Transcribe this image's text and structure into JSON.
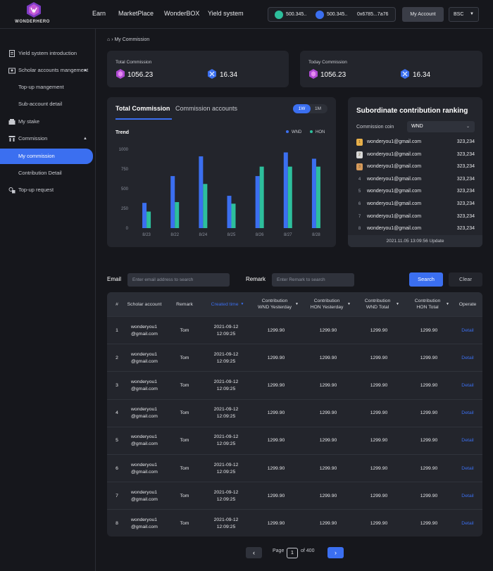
{
  "header": {
    "logo_text": "WONDERHERO",
    "nav": [
      "Earn",
      "MarketPlace",
      "WonderBOX",
      "Yield system"
    ],
    "wallet": {
      "wnd_balance": "500.345..",
      "hon_balance": "500.345..",
      "address": "0x6785...7a76"
    },
    "account_label": "My Account",
    "chain_label": "BSC"
  },
  "sidebar": {
    "items": [
      {
        "label": "Yield system introduction"
      },
      {
        "label": "Scholar accounts mangement"
      },
      {
        "label": "Top-up mangement"
      },
      {
        "label": "Sub-account detail"
      },
      {
        "label": "My stake"
      },
      {
        "label": "Commission"
      },
      {
        "label": "My commission"
      },
      {
        "label": "Contribution Detail"
      },
      {
        "label": "Top-up request"
      }
    ]
  },
  "breadcrumb": {
    "current": "My Commission"
  },
  "summary": {
    "total": {
      "label": "Total Commission",
      "wnd": "1056.23",
      "hon": "16.34"
    },
    "today": {
      "label": "Today Commission",
      "wnd": "1056.23",
      "hon": "16.34"
    }
  },
  "commission_tabs": {
    "active": "Total Commission",
    "other": "Commission accounts",
    "range_on": "1W",
    "range_off": "1M"
  },
  "chart_title": "Trend",
  "chart_data": {
    "type": "bar",
    "categories": [
      "8/23",
      "8/22",
      "8/24",
      "8/25",
      "8/26",
      "8/27",
      "8/28"
    ],
    "series": [
      {
        "name": "WND",
        "values": [
          320,
          660,
          910,
          410,
          660,
          960,
          880
        ]
      },
      {
        "name": "HON",
        "values": [
          210,
          330,
          560,
          310,
          780,
          780,
          780
        ]
      }
    ],
    "y_ticks": [
      0,
      250,
      500,
      750,
      1000
    ],
    "ylim": [
      0,
      1000
    ],
    "colors": {
      "WND": "#3b6ff0",
      "HON": "#2dbf9c"
    },
    "legend_position": "top-right",
    "grid": false
  },
  "ranking": {
    "title": "Subordinate contribution ranking",
    "coin_label": "Commission coin",
    "coin_value": "WND",
    "rows": [
      {
        "rank": "1",
        "email": "wonderyou1@gmail.com",
        "score": "323,234"
      },
      {
        "rank": "2",
        "email": "wonderyou1@gmail.com",
        "score": "323,234"
      },
      {
        "rank": "3",
        "email": "wonderyou1@gmail.com",
        "score": "323,234"
      },
      {
        "rank": "4",
        "email": "wonderyou1@gmail.com",
        "score": "323,234"
      },
      {
        "rank": "5",
        "email": "wonderyou1@gmail.com",
        "score": "323,234"
      },
      {
        "rank": "6",
        "email": "wonderyou1@gmail.com",
        "score": "323,234"
      },
      {
        "rank": "7",
        "email": "wonderyou1@gmail.com",
        "score": "323,234"
      },
      {
        "rank": "8",
        "email": "wonderyou1@gmail.com",
        "score": "323,234"
      }
    ],
    "footer": "2021.11.05 13:09:56 Update"
  },
  "filters": {
    "email_label": "Email",
    "email_placeholder": "Enter email address to search",
    "remark_label": "Remark",
    "remark_placeholder": "Enter Remark to search",
    "search_label": "Search",
    "clear_label": "Clear"
  },
  "table": {
    "headers": {
      "index": "#",
      "account": "Scholar account",
      "remark": "Remark",
      "created": "Created time",
      "wnd_yesterday": "Contribution WND Yesterday",
      "hon_yesterday": "Contribution HON Yesterday",
      "wnd_total": "Contribution WND Total",
      "hon_total": "Contribution HON Total",
      "operate": "Operate"
    },
    "rows": [
      {
        "index": "1",
        "account": "wonderyou1 @gmail.com",
        "remark": "Tom",
        "created": "2021-09-12 12:09:25",
        "wnd_y": "1299.90",
        "hon_y": "1299.90",
        "wnd_t": "1299.90",
        "hon_t": "1299.90",
        "op": "Detail"
      },
      {
        "index": "2",
        "account": "wonderyou1 @gmail.com",
        "remark": "Tom",
        "created": "2021-09-12 12:09:25",
        "wnd_y": "1299.90",
        "hon_y": "1299.90",
        "wnd_t": "1299.90",
        "hon_t": "1299.90",
        "op": "Detail"
      },
      {
        "index": "3",
        "account": "wonderyou1 @gmail.com",
        "remark": "Tom",
        "created": "2021-09-12 12:09:25",
        "wnd_y": "1299.90",
        "hon_y": "1299.90",
        "wnd_t": "1299.90",
        "hon_t": "1299.90",
        "op": "Detail"
      },
      {
        "index": "4",
        "account": "wonderyou1 @gmail.com",
        "remark": "Tom",
        "created": "2021-09-12 12:09:25",
        "wnd_y": "1299.90",
        "hon_y": "1299.90",
        "wnd_t": "1299.90",
        "hon_t": "1299.90",
        "op": "Detail"
      },
      {
        "index": "5",
        "account": "wonderyou1 @gmail.com",
        "remark": "Tom",
        "created": "2021-09-12 12:09:25",
        "wnd_y": "1299.90",
        "hon_y": "1299.90",
        "wnd_t": "1299.90",
        "hon_t": "1299.90",
        "op": "Detail"
      },
      {
        "index": "6",
        "account": "wonderyou1 @gmail.com",
        "remark": "Tom",
        "created": "2021-09-12 12:09:25",
        "wnd_y": "1299.90",
        "hon_y": "1299.90",
        "wnd_t": "1299.90",
        "hon_t": "1299.90",
        "op": "Detail"
      },
      {
        "index": "7",
        "account": "wonderyou1 @gmail.com",
        "remark": "Tom",
        "created": "2021-09-12 12:09:25",
        "wnd_y": "1299.90",
        "hon_y": "1299.90",
        "wnd_t": "1299.90",
        "hon_t": "1299.90",
        "op": "Detail"
      },
      {
        "index": "8",
        "account": "wonderyou1 @gmail.com",
        "remark": "Tom",
        "created": "2021-09-12 12:09:25",
        "wnd_y": "1299.90",
        "hon_y": "1299.90",
        "wnd_t": "1299.90",
        "hon_t": "1299.90",
        "op": "Detail"
      }
    ]
  },
  "pagination": {
    "page_label": "Page",
    "current": "1",
    "total": "of 400"
  },
  "theme": {
    "accent": "#3b6ff0",
    "hon": "#2dbf9c",
    "card": "#23252c",
    "bg": "#16171c"
  }
}
